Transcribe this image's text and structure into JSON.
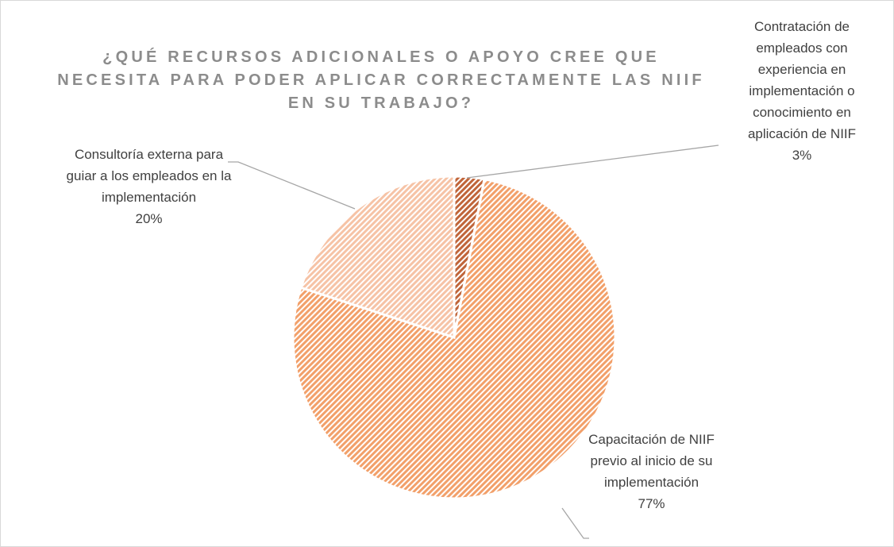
{
  "chart_data": {
    "type": "pie",
    "title": "¿QUÉ RECURSOS ADICIONALES O APOYO CREE QUE NECESITA PARA PODER APLICAR CORRECTAMENTE LAS NIIF EN SU TRABAJO?",
    "categories": [
      "Contratación de empleados con experiencia en implementación o conocimiento en aplicación de NIIF",
      "Capacitación de NIIF previo al inicio de su implementación",
      "Consultoría externa para guiar a los empleados en la implementación"
    ],
    "values": [
      3,
      77,
      20
    ],
    "value_labels": [
      "3%",
      "77%",
      "20%"
    ],
    "colors": [
      "#c0653a",
      "#f2a06a",
      "#f6c3a6"
    ]
  }
}
